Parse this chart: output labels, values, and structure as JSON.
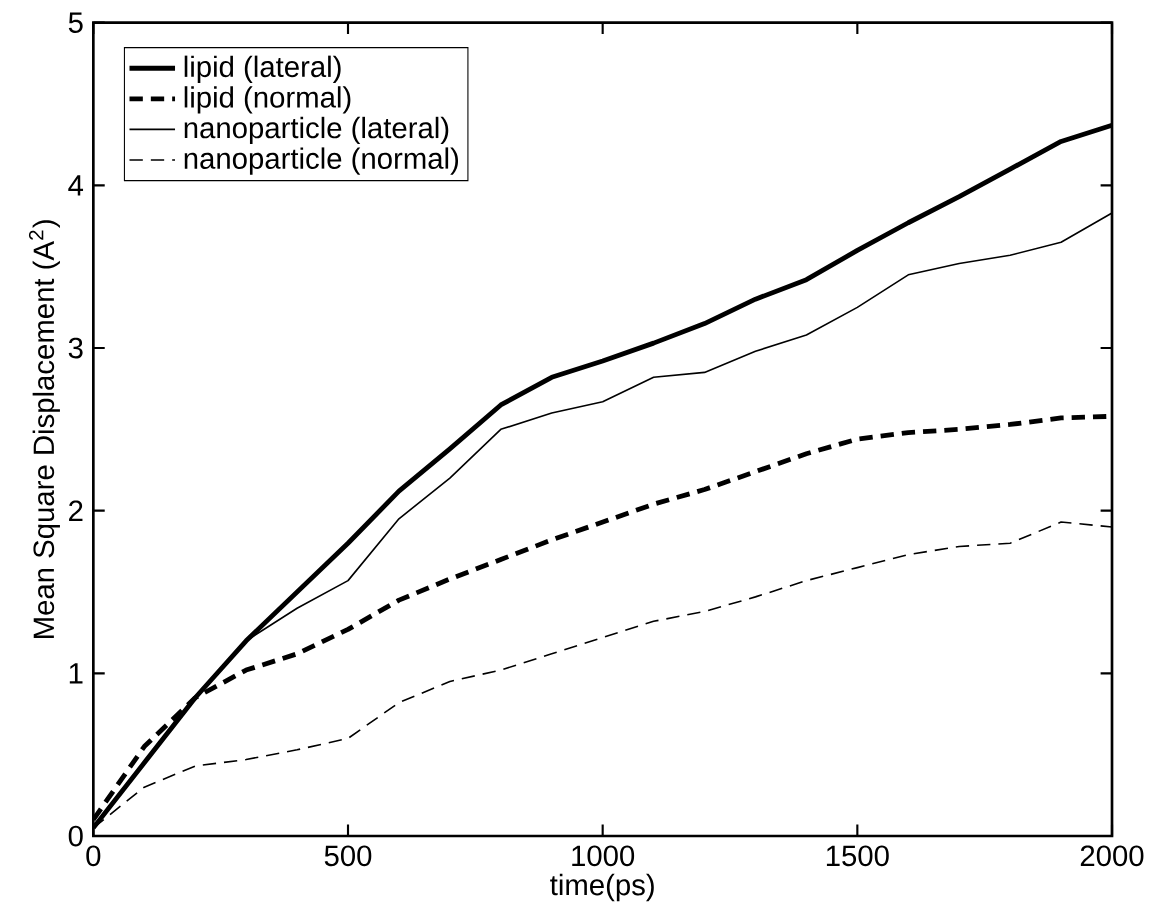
{
  "chart_data": {
    "type": "line",
    "xlabel": "time(ps)",
    "ylabel": "Mean Square Displacement (A$^{2}$)",
    "x": [
      0,
      100,
      200,
      300,
      400,
      500,
      600,
      700,
      800,
      900,
      1000,
      1100,
      1200,
      1300,
      1400,
      1500,
      1600,
      1700,
      1800,
      1900,
      2000
    ],
    "xlim": [
      0,
      2000
    ],
    "xticks": [
      0,
      500,
      1000,
      1500,
      2000
    ],
    "ylim": [
      0,
      5
    ],
    "yticks": [
      0,
      1,
      2,
      3,
      4,
      5
    ],
    "legend": "top left",
    "marker": "none",
    "series": [
      {
        "name": "lipid (lateral)",
        "color": "#000000",
        "line_style": "solid",
        "values": [
          0.05,
          0.45,
          0.85,
          1.2,
          1.5,
          1.8,
          2.12,
          2.38,
          2.65,
          2.82,
          2.92,
          3.03,
          3.15,
          3.3,
          3.42,
          3.6,
          3.77,
          3.93,
          4.1,
          4.27,
          4.37
        ]
      },
      {
        "name": "lipid (normal)",
        "color": "#000000",
        "line_style": "dashed",
        "values": [
          0.1,
          0.55,
          0.85,
          1.02,
          1.12,
          1.27,
          1.45,
          1.58,
          1.7,
          1.82,
          1.93,
          2.04,
          2.13,
          2.24,
          2.35,
          2.44,
          2.48,
          2.5,
          2.53,
          2.57,
          2.58
        ]
      },
      {
        "name": "nanoparticle (lateral)",
        "color": "#000000",
        "line_style": "solid",
        "values": [
          0.05,
          0.45,
          0.85,
          1.2,
          1.4,
          1.57,
          1.95,
          2.2,
          2.5,
          2.6,
          2.67,
          2.82,
          2.85,
          2.98,
          3.08,
          3.25,
          3.45,
          3.52,
          3.57,
          3.65,
          3.83
        ]
      },
      {
        "name": "nanoparticle (normal)",
        "color": "#000000",
        "line_style": "dashed",
        "values": [
          0.05,
          0.3,
          0.43,
          0.47,
          0.53,
          0.6,
          0.82,
          0.95,
          1.02,
          1.12,
          1.22,
          1.32,
          1.38,
          1.47,
          1.57,
          1.65,
          1.73,
          1.78,
          1.8,
          1.93,
          1.9
        ]
      }
    ]
  }
}
